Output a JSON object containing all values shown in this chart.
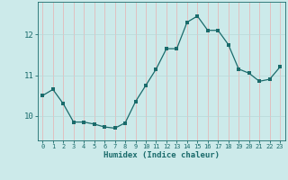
{
  "x": [
    0,
    1,
    2,
    3,
    4,
    5,
    6,
    7,
    8,
    9,
    10,
    11,
    12,
    13,
    14,
    15,
    16,
    17,
    18,
    19,
    20,
    21,
    22,
    23
  ],
  "y": [
    10.5,
    10.65,
    10.3,
    9.85,
    9.85,
    9.8,
    9.73,
    9.7,
    9.83,
    10.35,
    10.75,
    11.15,
    11.65,
    11.65,
    12.3,
    12.45,
    12.1,
    12.1,
    11.75,
    11.15,
    11.05,
    10.85,
    10.9,
    11.2
  ],
  "line_color": "#1a6b6b",
  "marker": "s",
  "marker_size": 2.5,
  "bg_color": "#cceaea",
  "grid_color_v": "#e8b0b0",
  "grid_color_h": "#b8d8d8",
  "xlabel": "Humidex (Indice chaleur)",
  "yticks": [
    10,
    11,
    12
  ],
  "xticks": [
    0,
    1,
    2,
    3,
    4,
    5,
    6,
    7,
    8,
    9,
    10,
    11,
    12,
    13,
    14,
    15,
    16,
    17,
    18,
    19,
    20,
    21,
    22,
    23
  ],
  "xlim": [
    -0.5,
    23.5
  ],
  "ylim": [
    9.4,
    12.8
  ]
}
